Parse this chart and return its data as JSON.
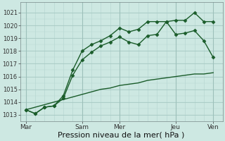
{
  "background_color": "#cde8e2",
  "plot_bg_color": "#cde8e2",
  "grid_major_color": "#9dc0ba",
  "grid_minor_color": "#b8d8d3",
  "line_color": "#1a5c2a",
  "xlabel": "Pression niveau de la mer( hPa )",
  "xlabel_fontsize": 8,
  "ylim": [
    1012.5,
    1021.8
  ],
  "yticks": [
    1013,
    1014,
    1015,
    1016,
    1017,
    1018,
    1019,
    1020,
    1021
  ],
  "xtick_labels": [
    "Mar",
    "Sam",
    "Mer",
    "Jeu",
    "Ven"
  ],
  "xtick_positions": [
    0,
    3,
    5,
    8,
    10
  ],
  "total_x": 10,
  "line1_x": [
    0,
    0.5,
    1.0,
    1.5,
    2.0,
    2.5,
    3.0,
    3.5,
    4.0,
    4.5,
    5.0,
    5.5,
    6.0,
    6.5,
    7.0,
    7.5,
    8.0,
    8.5,
    9.0,
    9.5,
    10.0
  ],
  "line1_y": [
    1013.4,
    1013.1,
    1013.6,
    1013.7,
    1014.3,
    1016.1,
    1017.3,
    1017.9,
    1018.4,
    1018.7,
    1019.1,
    1018.7,
    1018.5,
    1019.2,
    1019.3,
    1020.3,
    1020.4,
    1020.4,
    1021.0,
    1020.3,
    1020.3
  ],
  "line2_x": [
    0,
    0.5,
    1.0,
    1.5,
    2.0,
    2.5,
    3.0,
    3.5,
    4.0,
    4.5,
    5.0,
    5.5,
    6.0,
    6.5,
    7.0,
    7.5,
    8.0,
    8.5,
    9.0,
    9.5,
    10.0
  ],
  "line2_y": [
    1013.4,
    1013.1,
    1013.6,
    1013.7,
    1014.5,
    1016.5,
    1018.0,
    1018.5,
    1018.8,
    1019.2,
    1019.8,
    1019.5,
    1019.7,
    1020.3,
    1020.3,
    1020.3,
    1019.3,
    1019.4,
    1019.6,
    1018.8,
    1017.5
  ],
  "line3_x": [
    0,
    0.5,
    1,
    1.5,
    2,
    2.5,
    3,
    3.5,
    4,
    4.5,
    5,
    5.5,
    6,
    6.5,
    7,
    7.5,
    8,
    8.5,
    9,
    9.5,
    10
  ],
  "line3_y": [
    1013.4,
    1013.6,
    1013.8,
    1014.0,
    1014.2,
    1014.4,
    1014.6,
    1014.8,
    1015.0,
    1015.1,
    1015.3,
    1015.4,
    1015.5,
    1015.7,
    1015.8,
    1015.9,
    1016.0,
    1016.1,
    1016.2,
    1016.2,
    1016.3
  ],
  "marker": "D",
  "markersize": 2.5,
  "linewidth": 1.0
}
